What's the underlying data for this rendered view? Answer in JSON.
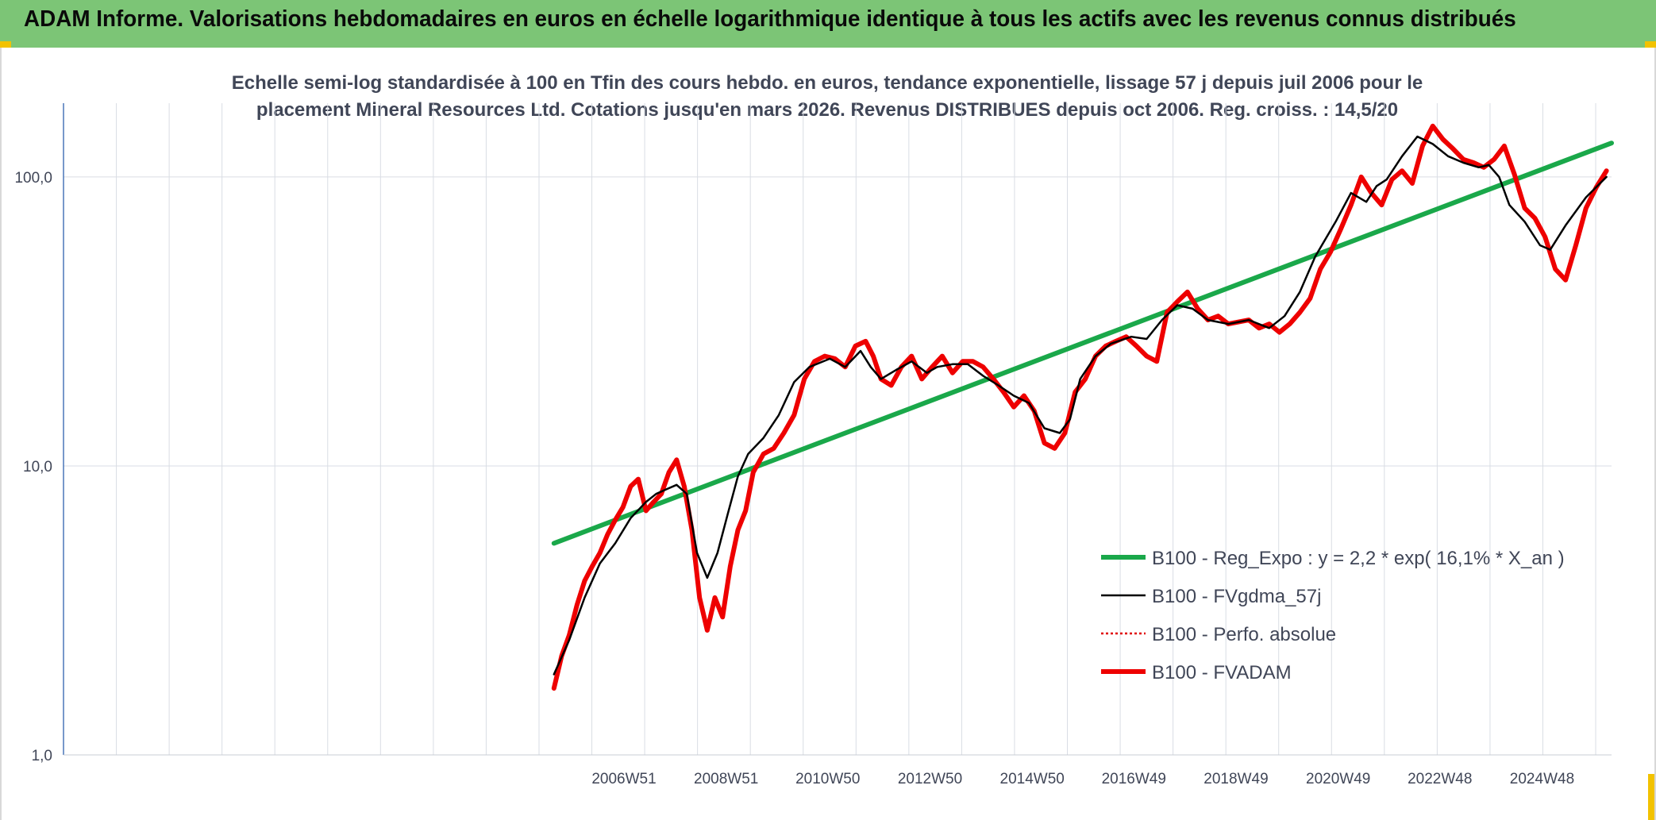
{
  "banner": {
    "title": "ADAM Informe. Valorisations hebdomadaires en euros en échelle logarithmique identique à tous les actifs avec les revenus connus distribués",
    "color": "#7cc576"
  },
  "chart_data": {
    "type": "line",
    "title_line1": "Echelle semi-log standardisée à 100 en Tfin des cours hebdo. en euros, tendance exponentielle, lissage 57 j depuis juil 2006 pour le",
    "title_line2": "placement Mineral Resources Ltd. Cotations jusqu'en mars 2026. Revenus DISTRIBUES depuis oct 2006. Reg. croiss. : 14,5/20",
    "y_scale": "log",
    "ylim": [
      1,
      180
    ],
    "y_ticks": [
      {
        "value": 1,
        "label": "1,0"
      },
      {
        "value": 10,
        "label": "10,0"
      },
      {
        "value": 100,
        "label": "100,0"
      }
    ],
    "xlim": [
      1996.0,
      2026.3
    ],
    "x_ticks": [
      {
        "value": 2006.97,
        "label": "2006W51"
      },
      {
        "value": 2008.97,
        "label": "2008W51"
      },
      {
        "value": 2010.96,
        "label": "2010W50"
      },
      {
        "value": 2012.96,
        "label": "2012W50"
      },
      {
        "value": 2014.96,
        "label": "2014W50"
      },
      {
        "value": 2016.95,
        "label": "2016W49"
      },
      {
        "value": 2018.95,
        "label": "2018W49"
      },
      {
        "value": 2020.95,
        "label": "2020W49"
      },
      {
        "value": 2022.94,
        "label": "2022W48"
      },
      {
        "value": 2024.94,
        "label": "2024W48"
      }
    ],
    "grid": true,
    "legend_position": "bottom-right",
    "series": [
      {
        "name": "B100 - Reg_Expo : y = 2,2 * exp( 16,1% *  X_an )",
        "color": "#1aa84a",
        "style": "solid-thick",
        "x": [
          2005.6,
          2026.3
        ],
        "y": [
          5.4,
          131
        ]
      },
      {
        "name": "B100 - FVgdma_57j",
        "color": "#000000",
        "style": "solid-thin",
        "x": [
          2005.6,
          2005.9,
          2006.2,
          2006.5,
          2006.8,
          2007.1,
          2007.4,
          2007.6,
          2007.8,
          2008.0,
          2008.2,
          2008.4,
          2008.6,
          2008.8,
          2009.0,
          2009.2,
          2009.4,
          2009.7,
          2010.0,
          2010.3,
          2010.6,
          2011.0,
          2011.3,
          2011.6,
          2011.8,
          2012.0,
          2012.3,
          2012.6,
          2012.9,
          2013.1,
          2013.4,
          2013.7,
          2014.0,
          2014.3,
          2014.6,
          2014.9,
          2015.2,
          2015.5,
          2015.7,
          2015.9,
          2016.2,
          2016.5,
          2016.9,
          2017.2,
          2017.5,
          2017.8,
          2018.1,
          2018.4,
          2018.8,
          2019.2,
          2019.6,
          2019.9,
          2020.2,
          2020.5,
          2020.9,
          2021.2,
          2021.5,
          2021.7,
          2021.9,
          2022.2,
          2022.5,
          2022.8,
          2023.1,
          2023.4,
          2023.7,
          2023.9,
          2024.1,
          2024.3,
          2024.6,
          2024.9,
          2025.1,
          2025.4,
          2025.8,
          2026.2
        ],
        "y": [
          1.9,
          2.5,
          3.5,
          4.6,
          5.4,
          6.6,
          7.5,
          8.0,
          8.3,
          8.6,
          8.0,
          5.0,
          4.1,
          5.0,
          6.8,
          9.2,
          11.0,
          12.5,
          15.0,
          19.5,
          22.0,
          23.5,
          22.0,
          25.0,
          22.0,
          20.0,
          21.5,
          23.0,
          21.0,
          22.0,
          22.5,
          22.5,
          20.5,
          19.0,
          17.5,
          16.5,
          13.5,
          13.0,
          14.5,
          20.0,
          24.0,
          26.5,
          28.0,
          27.5,
          32.0,
          36.0,
          35.0,
          32.0,
          31.0,
          32.0,
          30.0,
          33.0,
          40.0,
          53.0,
          70.0,
          88.0,
          82.0,
          93.0,
          98.0,
          118.0,
          138.0,
          130.0,
          118.0,
          112.0,
          108.0,
          110.0,
          100.0,
          80.0,
          70.0,
          58.0,
          56.0,
          68.0,
          85.0,
          100.0
        ]
      },
      {
        "name": "B100 - Perfo. absolue",
        "color": "#e00000",
        "style": "dotted",
        "x": [],
        "y": []
      },
      {
        "name": "B100 - FVADAM",
        "color": "#ee0000",
        "style": "solid-thick",
        "x": [
          2005.6,
          2005.75,
          2005.9,
          2006.05,
          2006.2,
          2006.35,
          2006.5,
          2006.65,
          2006.8,
          2006.95,
          2007.1,
          2007.25,
          2007.4,
          2007.55,
          2007.7,
          2007.85,
          2008.0,
          2008.15,
          2008.3,
          2008.45,
          2008.6,
          2008.75,
          2008.9,
          2009.05,
          2009.2,
          2009.35,
          2009.5,
          2009.7,
          2009.9,
          2010.1,
          2010.3,
          2010.5,
          2010.7,
          2010.9,
          2011.1,
          2011.3,
          2011.5,
          2011.7,
          2011.85,
          2012.0,
          2012.2,
          2012.4,
          2012.6,
          2012.8,
          2013.0,
          2013.2,
          2013.4,
          2013.6,
          2013.8,
          2014.0,
          2014.2,
          2014.4,
          2014.6,
          2014.8,
          2015.0,
          2015.2,
          2015.4,
          2015.6,
          2015.8,
          2016.0,
          2016.2,
          2016.4,
          2016.6,
          2016.8,
          2017.0,
          2017.2,
          2017.4,
          2017.6,
          2017.8,
          2018.0,
          2018.2,
          2018.4,
          2018.6,
          2018.8,
          2019.0,
          2019.2,
          2019.4,
          2019.6,
          2019.8,
          2020.0,
          2020.2,
          2020.4,
          2020.6,
          2020.8,
          2021.0,
          2021.2,
          2021.4,
          2021.6,
          2021.8,
          2022.0,
          2022.2,
          2022.4,
          2022.6,
          2022.8,
          2023.0,
          2023.2,
          2023.4,
          2023.6,
          2023.8,
          2024.0,
          2024.2,
          2024.4,
          2024.6,
          2024.8,
          2025.0,
          2025.2,
          2025.4,
          2025.6,
          2025.8,
          2026.0,
          2026.2
        ],
        "y": [
          1.7,
          2.2,
          2.6,
          3.3,
          4.0,
          4.5,
          5.0,
          5.8,
          6.5,
          7.2,
          8.5,
          9.0,
          7.0,
          7.5,
          8.0,
          9.5,
          10.5,
          8.5,
          6.0,
          3.5,
          2.7,
          3.5,
          3.0,
          4.5,
          6.0,
          7.0,
          9.5,
          11.0,
          11.5,
          13.0,
          15.0,
          20.0,
          23.0,
          24.0,
          23.5,
          22.0,
          26.0,
          27.0,
          24.0,
          20.0,
          19.0,
          22.0,
          24.0,
          20.0,
          22.0,
          24.0,
          21.0,
          23.0,
          23.0,
          22.0,
          20.0,
          18.0,
          16.0,
          17.5,
          15.5,
          12.0,
          11.5,
          13.0,
          18.0,
          20.0,
          24.0,
          26.0,
          27.0,
          28.0,
          26.0,
          24.0,
          23.0,
          34.0,
          37.0,
          40.0,
          35.0,
          32.0,
          33.0,
          31.0,
          31.5,
          32.0,
          30.0,
          31.0,
          29.0,
          31.0,
          34.0,
          38.0,
          48.0,
          55.0,
          66.0,
          80.0,
          100.0,
          88.0,
          80.0,
          98.0,
          105.0,
          95.0,
          128.0,
          150.0,
          135.0,
          125.0,
          115.0,
          112.0,
          108.0,
          115.0,
          128.0,
          102.0,
          78.0,
          72.0,
          62.0,
          48.0,
          44.0,
          58.0,
          78.0,
          92.0,
          105.0
        ]
      }
    ]
  }
}
